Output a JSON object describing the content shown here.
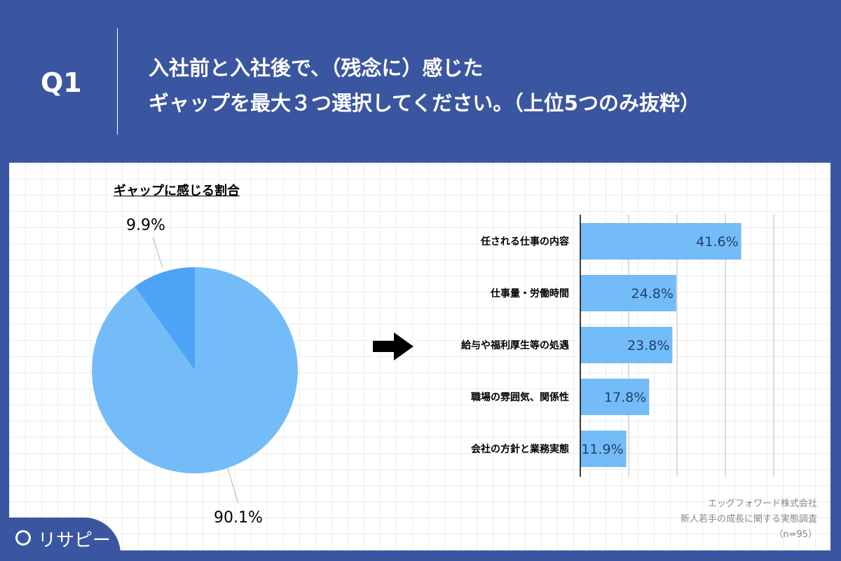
{
  "header": {
    "q": "Q1",
    "title_line1": "入社前と入社後で、（残念に）感じた",
    "title_line2": "ギャップを最大３つ選択してください。（上位5つのみ抜粋）"
  },
  "source": {
    "line1": "エッグフォワード株式会社",
    "line2": "新人若手の成長に関する実態調査",
    "line3": "（n=95）"
  },
  "logo": "リサピー",
  "colors": {
    "background": "#3b56a0",
    "pie_main": "#74bcf8",
    "pie_small": "#4da3f5",
    "bar": "#74bcf8",
    "bar_label": "#1f3f6e"
  },
  "chart_data": [
    {
      "type": "pie",
      "title": "ギャップに感じる割合",
      "slices": [
        {
          "label": "90.1%",
          "value": 90.1
        },
        {
          "label": "9.9%",
          "value": 9.9
        }
      ]
    },
    {
      "type": "bar",
      "orientation": "horizontal",
      "categories": [
        "任される仕事の内容",
        "仕事量・労働時間",
        "給与や福利厚生等の処遇",
        "職場の雰囲気、関係性",
        "会社の方針と業務実態"
      ],
      "values": [
        41.6,
        24.8,
        23.8,
        17.8,
        11.9
      ],
      "value_labels": [
        "41.6%",
        "24.8%",
        "23.8%",
        "17.8%",
        "11.9%"
      ],
      "xlim": [
        0,
        50
      ],
      "grid": true
    }
  ]
}
